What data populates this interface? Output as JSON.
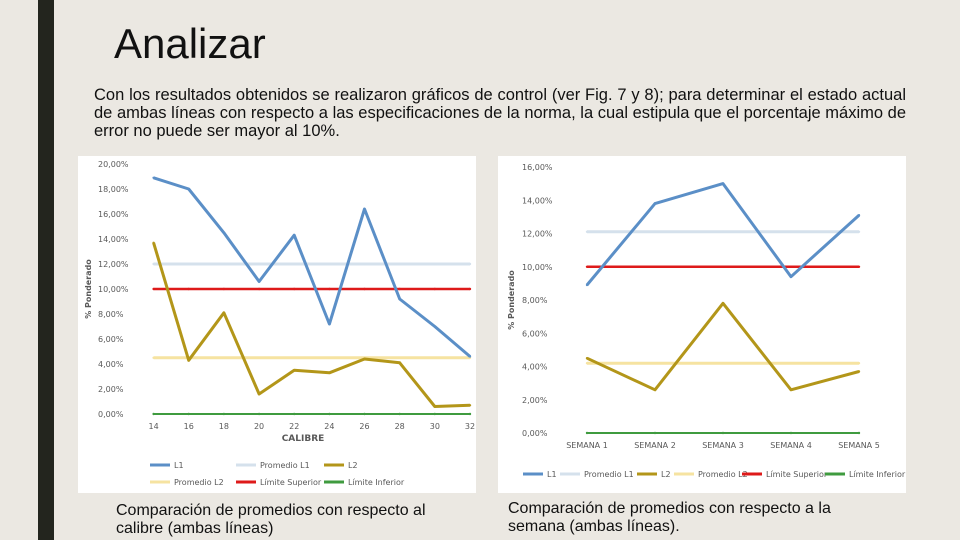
{
  "slide": {
    "title": "Analizar",
    "body": "Con los resultados obtenidos se realizaron gráficos de control (ver Fig. 7 y 8); para determinar el estado actual de ambas líneas con respecto a las especificaciones de la norma, la cual estipula que el porcentaje máximo de error no puede ser mayor al 10%.",
    "caption_left": "Comparación de promedios con respecto al calibre (ambas líneas)",
    "caption_right": "Comparación de promedios con respecto a la semana (ambas líneas)."
  },
  "colors": {
    "L1": "#5b8fc7",
    "Promedio L1": "#d5e1ec",
    "L2": "#b39619",
    "Promedio L2": "#f6e3a1",
    "Límite Superior": "#de1a1a",
    "Límite Inferior": "#3f9b3f"
  },
  "chart_data": [
    {
      "type": "line",
      "title": "",
      "xlabel": "CALIBRE",
      "ylabel": "% Ponderado",
      "categories": [
        "14",
        "16",
        "18",
        "20",
        "22",
        "24",
        "26",
        "28",
        "30",
        "32"
      ],
      "x": [
        14,
        16,
        18,
        20,
        22,
        24,
        26,
        28,
        30,
        32
      ],
      "xlim": [
        13,
        32
      ],
      "ylim": [
        0,
        20
      ],
      "yticks": [
        "0,00%",
        "2,00%",
        "4,00%",
        "6,00%",
        "8,00%",
        "10,00%",
        "12,00%",
        "14,00%",
        "16,00%",
        "18,00%",
        "20,00%"
      ],
      "legend_position": "bottom",
      "series": [
        {
          "name": "L1",
          "values": [
            18.9,
            18.0,
            14.5,
            10.6,
            14.3,
            7.2,
            16.4,
            9.2,
            7.0,
            4.6
          ]
        },
        {
          "name": "Promedio L1",
          "values": [
            12.0,
            12.0,
            12.0,
            12.0,
            12.0,
            12.0,
            12.0,
            12.0,
            12.0,
            12.0
          ]
        },
        {
          "name": "L2",
          "values": [
            13.7,
            4.3,
            8.1,
            1.6,
            3.5,
            3.3,
            4.4,
            4.1,
            0.6,
            0.7
          ]
        },
        {
          "name": "Promedio L2",
          "values": [
            4.5,
            4.5,
            4.5,
            4.5,
            4.5,
            4.5,
            4.5,
            4.5,
            4.5,
            4.5
          ]
        },
        {
          "name": "Límite Superior",
          "values": [
            10.0,
            10.0,
            10.0,
            10.0,
            10.0,
            10.0,
            10.0,
            10.0,
            10.0,
            10.0
          ]
        },
        {
          "name": "Límite Inferior",
          "values": [
            0,
            0,
            0,
            0,
            0,
            0,
            0,
            0,
            0,
            0
          ]
        }
      ]
    },
    {
      "type": "line",
      "title": "",
      "xlabel": "",
      "ylabel": "% Ponderado",
      "categories": [
        "SEMANA 1",
        "SEMANA 2",
        "SEMANA 3",
        "SEMANA 4",
        "SEMANA 5"
      ],
      "ylim": [
        0,
        16
      ],
      "yticks": [
        "0,00%",
        "2,00%",
        "4,00%",
        "6,00%",
        "8,00%",
        "10,00%",
        "12,00%",
        "14,00%",
        "16,00%"
      ],
      "legend_position": "bottom",
      "series": [
        {
          "name": "L1",
          "values": [
            8.9,
            13.8,
            15.0,
            9.4,
            13.1
          ]
        },
        {
          "name": "Promedio L1",
          "values": [
            12.1,
            12.1,
            12.1,
            12.1,
            12.1
          ]
        },
        {
          "name": "L2",
          "values": [
            4.5,
            2.6,
            7.8,
            2.6,
            3.7
          ]
        },
        {
          "name": "Promedio L2",
          "values": [
            4.2,
            4.2,
            4.2,
            4.2,
            4.2
          ]
        },
        {
          "name": "Límite Superior",
          "values": [
            10.0,
            10.0,
            10.0,
            10.0,
            10.0
          ]
        },
        {
          "name": "Límite Inferior",
          "values": [
            0,
            0,
            0,
            0,
            0
          ]
        }
      ]
    }
  ]
}
